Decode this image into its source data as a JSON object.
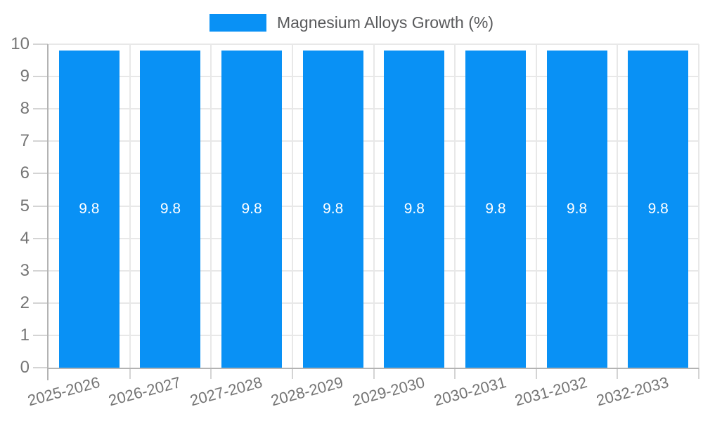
{
  "legend": {
    "label": "Magnesium Alloys Growth (%)",
    "swatch_color": "#0991f5"
  },
  "chart_data": {
    "type": "bar",
    "title": "",
    "xlabel": "",
    "ylabel": "",
    "categories": [
      "2025-2026",
      "2026-2027",
      "2027-2028",
      "2028-2029",
      "2029-2030",
      "2030-2031",
      "2031-2032",
      "2032-2033"
    ],
    "series": [
      {
        "name": "Magnesium Alloys Growth (%)",
        "values": [
          9.8,
          9.8,
          9.8,
          9.8,
          9.8,
          9.8,
          9.8,
          9.8
        ],
        "color": "#0991f5"
      }
    ],
    "value_labels": [
      "9.8",
      "9.8",
      "9.8",
      "9.8",
      "9.8",
      "9.8",
      "9.8",
      "9.8"
    ],
    "ylim": [
      0,
      10
    ],
    "ytick_step": 1,
    "ytick_labels": [
      "0",
      "1",
      "2",
      "3",
      "4",
      "5",
      "6",
      "7",
      "8",
      "9",
      "10"
    ],
    "grid": true,
    "legend_position": "top"
  },
  "colors": {
    "bar": "#0991f5",
    "gridline": "#e8e8e8",
    "axis": "#b3b3b3",
    "tick": "#d4d4d4",
    "tick_label_text": "#757575",
    "bar_label_text": "#ffffff",
    "legend_text": "#58595b"
  }
}
